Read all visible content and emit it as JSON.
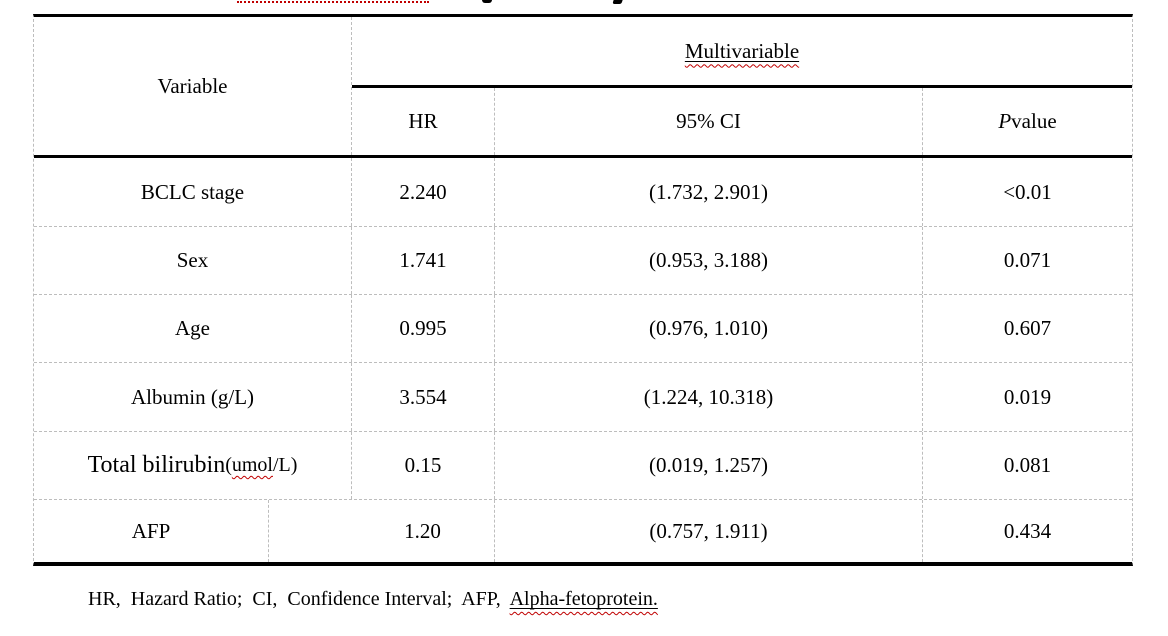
{
  "colors": {
    "text": "#000000",
    "strong_border": "#000000",
    "grid_dashed": "#bdbdbd",
    "spellcheck_red": "#c00000"
  },
  "table": {
    "header": {
      "variable": "Variable",
      "group": "Multivariable",
      "col_hr": "HR",
      "col_ci": "95% CI",
      "col_p_italic": "P",
      "col_p_rest": " value"
    },
    "rows": [
      {
        "variable": "BCLC stage",
        "hr": "2.240",
        "ci": "(1.732, 2.901)",
        "p": "<0.01"
      },
      {
        "variable": "Sex",
        "hr": "1.741",
        "ci": "(0.953, 3.188)",
        "p": "0.071"
      },
      {
        "variable": "Age",
        "hr": "0.995",
        "ci": "(0.976, 1.010)",
        "p": "0.607"
      },
      {
        "variable": "Albumin (g/L)",
        "hr": "3.554",
        "ci": "(1.224, 10.318)",
        "p": "0.019"
      },
      {
        "variable_main": "Total bilirubin",
        "variable_unit_open": "(",
        "variable_unit_word": "umol",
        "variable_unit_close": "/L)",
        "hr": "0.15",
        "ci": "(0.019, 1.257)",
        "p": "0.081"
      },
      {
        "variable": "AFP",
        "hr": "1.20",
        "ci": "(0.757, 1.911)",
        "p": "0.434"
      }
    ]
  },
  "footnote": {
    "pre": "HR,  Hazard Ratio;  CI,  Confidence Interval;  AFP,  ",
    "underlined": "Alpha-fetoprotein."
  }
}
